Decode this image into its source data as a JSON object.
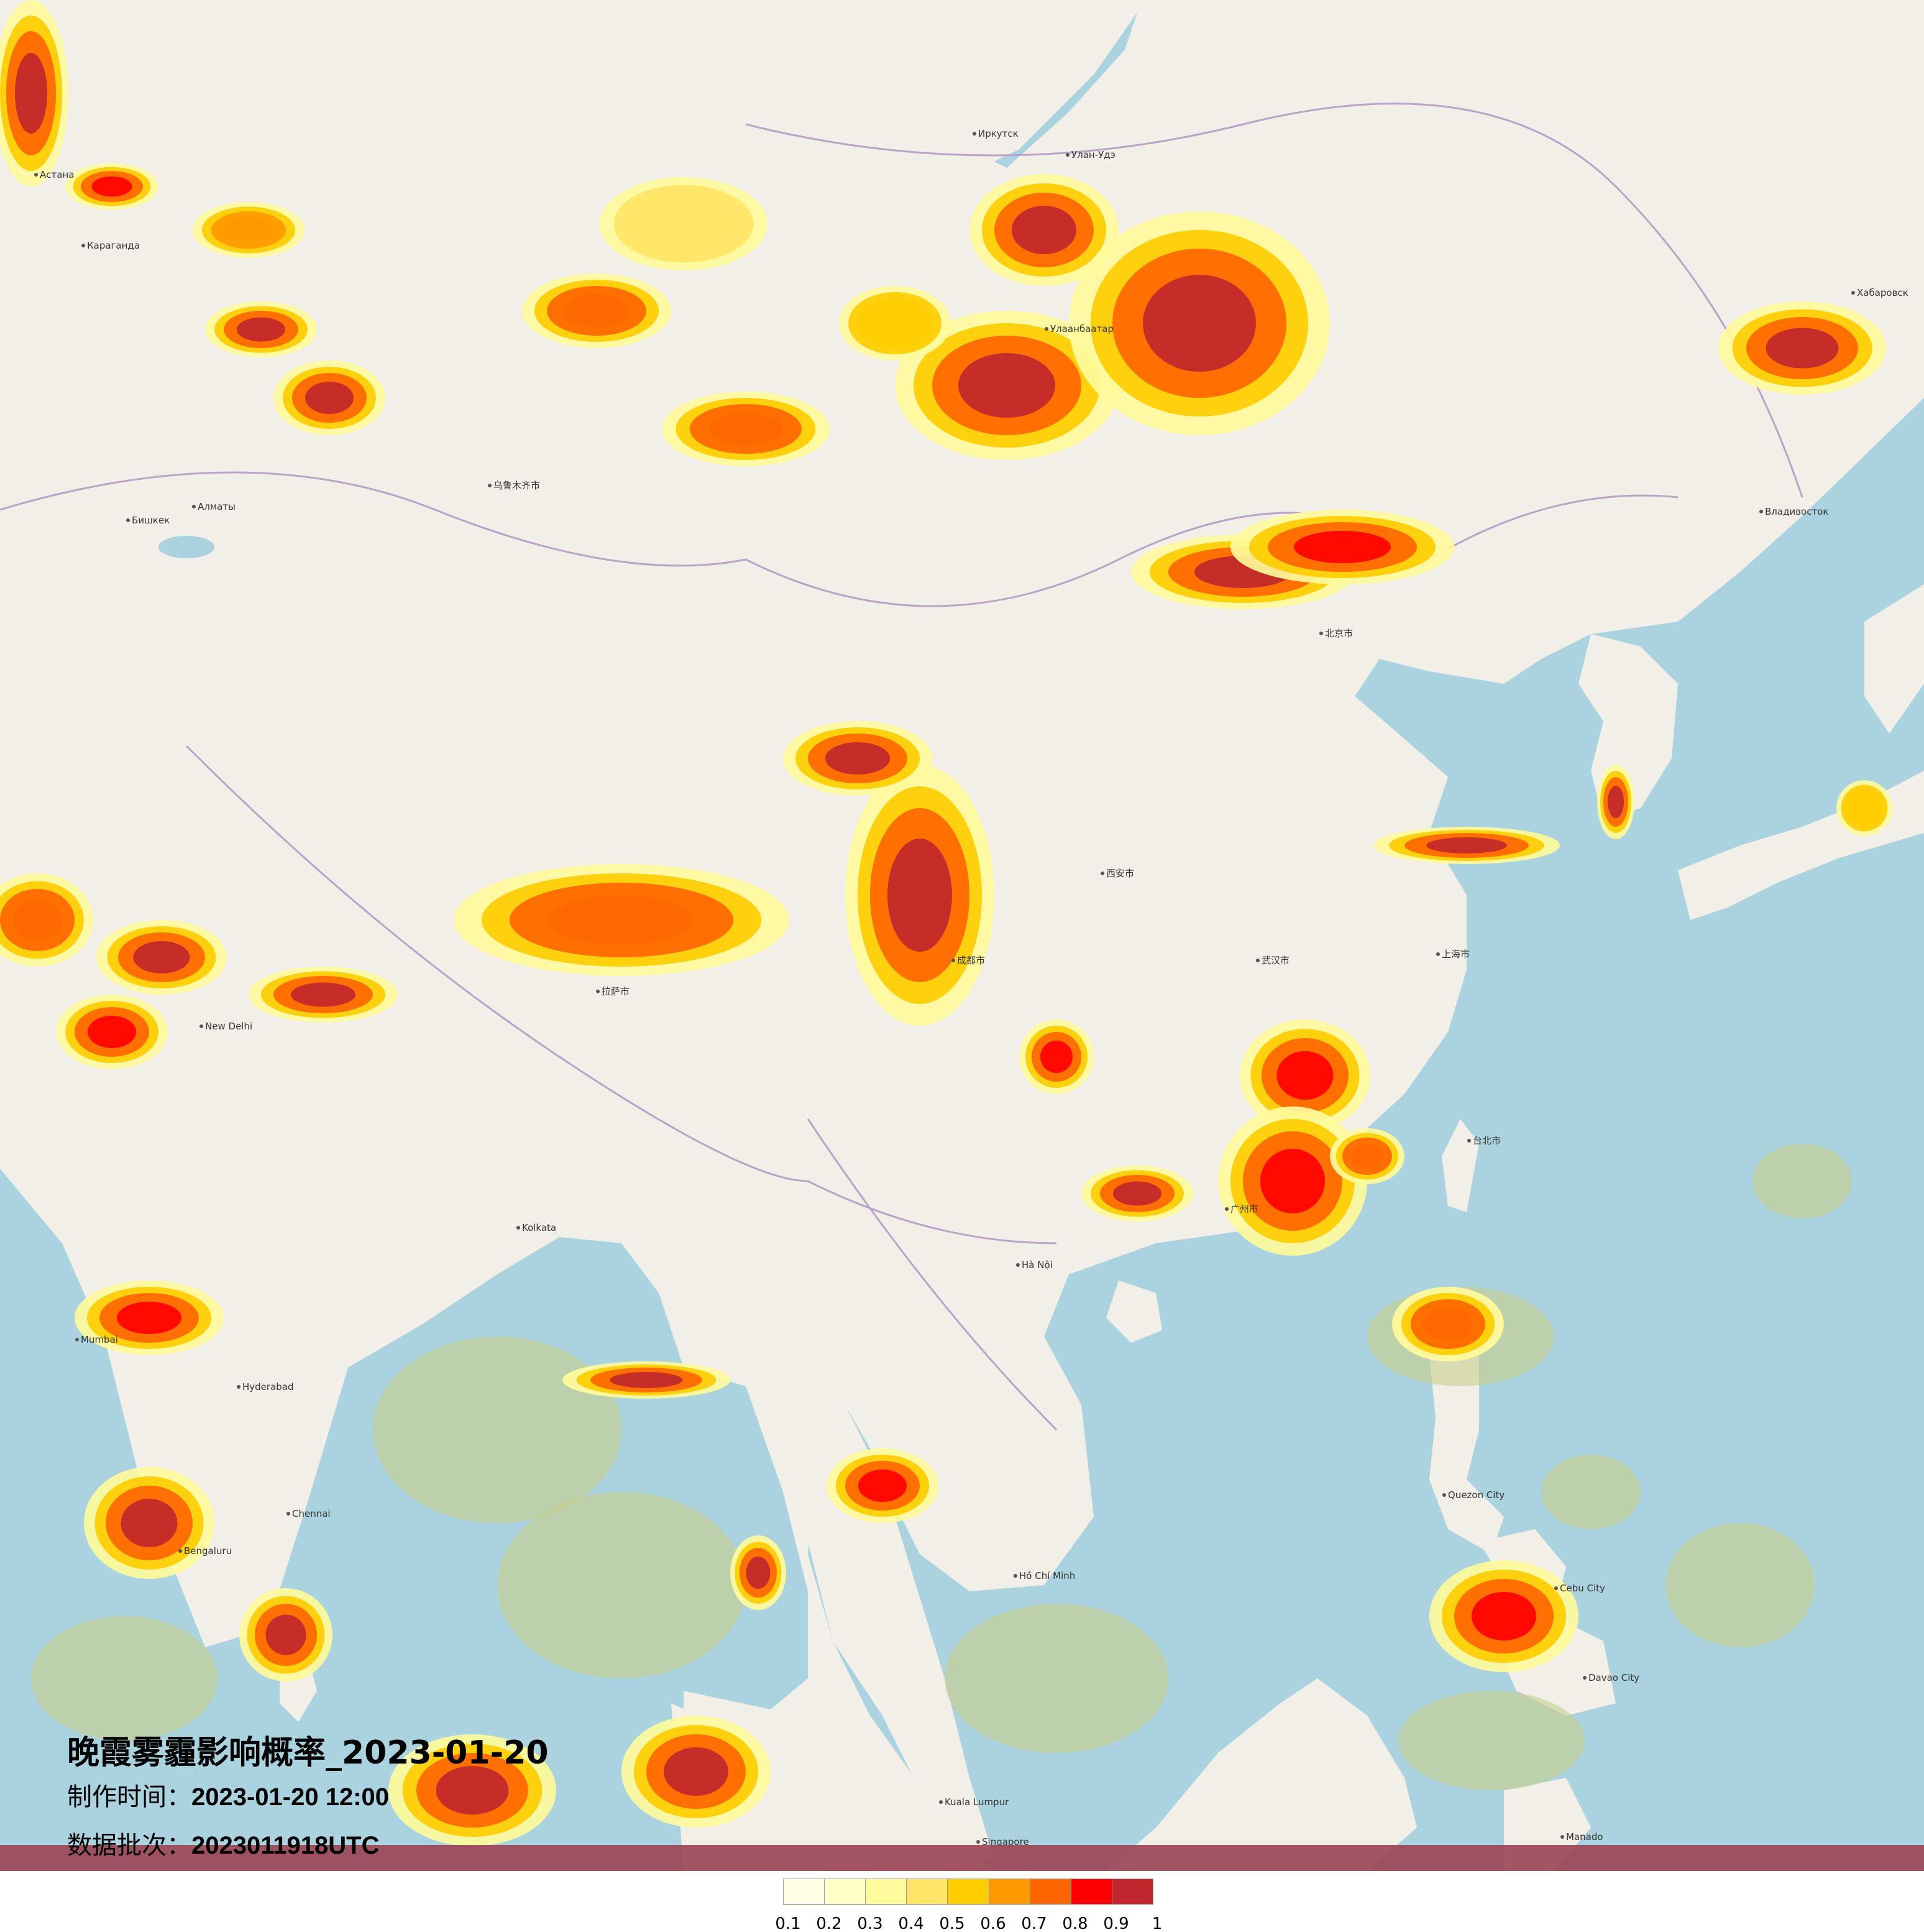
{
  "title": {
    "main": "晚霞雾霾影响概率_2023-01-20",
    "made_label": "制作时间：",
    "made_value": "2023-01-20 12:00",
    "batch_label": "数据批次：",
    "batch_value": "2023011918UTC"
  },
  "legend": {
    "colors": [
      "#fffde6",
      "#ffffc8",
      "#fffa9b",
      "#ffe566",
      "#ffcc00",
      "#ff9900",
      "#ff6600",
      "#ff0000",
      "#c0272d"
    ],
    "ticks": [
      "0.1",
      "0.2",
      "0.3",
      "0.4",
      "0.5",
      "0.6",
      "0.7",
      "0.8",
      "0.9",
      "1"
    ]
  },
  "map": {
    "land_color": "#f2efe9",
    "sea_color": "#aad3df",
    "cities": [
      {
        "name": "Астана"
      },
      {
        "name": "Караганда"
      },
      {
        "name": "Иркутск"
      },
      {
        "name": "Улан-Удэ"
      },
      {
        "name": "Хабаровск"
      },
      {
        "name": "Владивосток"
      },
      {
        "name": "Улаанбаатар"
      },
      {
        "name": "北京市"
      },
      {
        "name": "上海市"
      },
      {
        "name": "广州市"
      },
      {
        "name": "成都市"
      },
      {
        "name": "武汉市"
      },
      {
        "name": "西安市"
      },
      {
        "name": "乌鲁木齐市"
      },
      {
        "name": "拉萨市"
      },
      {
        "name": "New Delhi"
      },
      {
        "name": "Kolkata"
      },
      {
        "name": "Mumbai"
      },
      {
        "name": "Hyderabad"
      },
      {
        "name": "Bengaluru"
      },
      {
        "name": "Chennai"
      },
      {
        "name": "Hà Nội"
      },
      {
        "name": "Hồ Chí Minh"
      },
      {
        "name": "Kuala Lumpur"
      },
      {
        "name": "Singapore"
      },
      {
        "name": "Manado"
      },
      {
        "name": "Davao City"
      },
      {
        "name": "Cebu City"
      },
      {
        "name": "Quezon City"
      },
      {
        "name": "台北市"
      },
      {
        "name": "Бишкек"
      },
      {
        "name": "Алматы"
      }
    ]
  }
}
